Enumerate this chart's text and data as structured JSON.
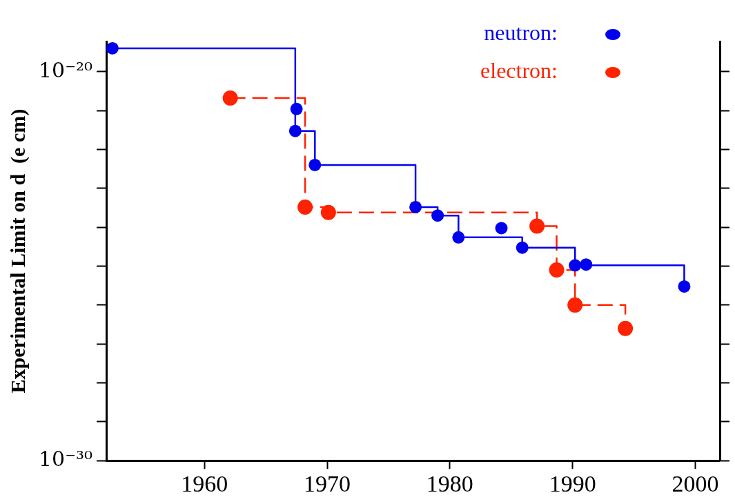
{
  "chart_data": {
    "type": "line",
    "ylabel": "Experimental Limit on d  (e cm)",
    "log": "y",
    "grid": false,
    "legend": "top right",
    "marker": "circle",
    "xlim": [
      1952,
      2002
    ],
    "xticks": [
      1960,
      1970,
      1980,
      1990,
      2000
    ],
    "ylim": [
      1e-30,
      6e-20
    ],
    "yticks": [
      {
        "value": 1e-30,
        "label": "10⁻³⁰"
      },
      {
        "value": 1e-29,
        "label": null
      },
      {
        "value": 1e-28,
        "label": null
      },
      {
        "value": 1e-27,
        "label": null
      },
      {
        "value": 1e-26,
        "label": null
      },
      {
        "value": 1e-25,
        "label": null
      },
      {
        "value": 1e-24,
        "label": null
      },
      {
        "value": 1e-23,
        "label": null
      },
      {
        "value": 1e-22,
        "label": null
      },
      {
        "value": 1e-21,
        "label": null
      },
      {
        "value": 1e-20,
        "label": "10⁻²⁰"
      }
    ],
    "series": [
      {
        "name": "neutron:",
        "type": "step",
        "color": "#0000ee",
        "line_style": "solid",
        "x": [
          1952.5,
          1967.4,
          1969.0,
          1977.2,
          1979.0,
          1980.7,
          1985.9,
          1990.2,
          1999.1
        ],
        "values": [
          4e-20,
          3e-22,
          4e-23,
          3.3e-24,
          2e-24,
          5.5e-25,
          3e-25,
          1.05e-25,
          3e-26
        ]
      },
      {
        "type": "scatter",
        "color": "#0000ee",
        "x": [
          1967.5,
          1984.2,
          1991.1
        ],
        "values": [
          1.1e-21,
          9.5e-25,
          1.1e-25
        ]
      },
      {
        "name": "electron:",
        "type": "step",
        "color": "#ff2200",
        "line_style": "dashed",
        "x": [
          1962.1,
          1968.2,
          1970.1,
          1987.1,
          1988.7,
          1990.2,
          1994.3
        ],
        "values": [
          2.1e-21,
          3.3e-24,
          2.4e-24,
          1.07e-24,
          8e-26,
          1e-26,
          2.5e-27
        ]
      }
    ]
  }
}
